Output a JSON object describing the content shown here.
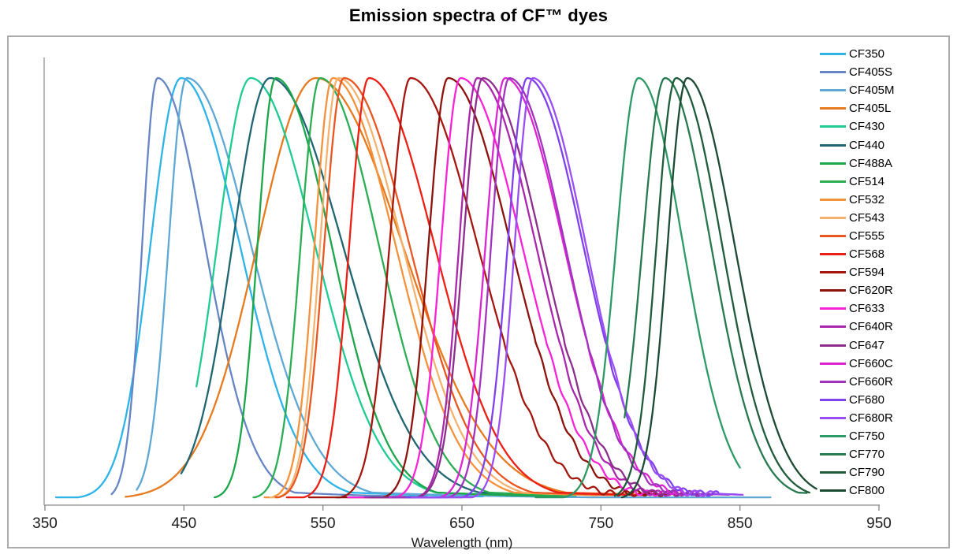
{
  "title": "Emission spectra of CF™ dyes",
  "chart_data": {
    "type": "line",
    "title": "Emission spectra of CF™ dyes",
    "xlabel": "Wavelength (nm)",
    "ylabel": "",
    "x_range_nm": [
      350,
      950
    ],
    "x_ticks": [
      "350",
      "450",
      "550",
      "650",
      "750",
      "850",
      "950"
    ],
    "y_axis": "normalized fluorescence intensity (unlabeled, all peaks equal height)",
    "grid": "off",
    "legend_position": "right",
    "series": [
      {
        "name": "CF350",
        "color": "#2EB3E8",
        "em_peak_nm": 448,
        "sigma_left": 22,
        "sigma_right": 42,
        "range_nm": [
          358,
          665
        ]
      },
      {
        "name": "CF405S",
        "color": "#6685C4",
        "em_peak_nm": 431,
        "sigma_left": 11,
        "sigma_right": 34,
        "range_nm": [
          398,
          625
        ]
      },
      {
        "name": "CF405M",
        "color": "#5FA8D5",
        "em_peak_nm": 452,
        "sigma_left": 13,
        "sigma_right": 46,
        "range_nm": [
          416,
          872
        ]
      },
      {
        "name": "CF405L",
        "color": "#E87A1E",
        "em_peak_nm": 545,
        "sigma_left": 42,
        "sigma_right": 62,
        "range_nm": [
          408,
          785
        ]
      },
      {
        "name": "CF430",
        "color": "#1FCB93",
        "em_peak_nm": 498,
        "sigma_left": 24,
        "sigma_right": 46,
        "range_nm": [
          459,
          706
        ]
      },
      {
        "name": "CF440",
        "color": "#1F6672",
        "em_peak_nm": 512,
        "sigma_left": 27,
        "sigma_right": 52,
        "range_nm": [
          448,
          726
        ]
      },
      {
        "name": "CF488A",
        "color": "#1BA64A",
        "em_peak_nm": 516,
        "sigma_left": 13,
        "sigma_right": 40,
        "range_nm": [
          472,
          722
        ]
      },
      {
        "name": "CF514",
        "color": "#2BAD53",
        "em_peak_nm": 548,
        "sigma_left": 14,
        "sigma_right": 42,
        "range_nm": [
          500,
          732
        ]
      },
      {
        "name": "CF532",
        "color": "#F5913B",
        "em_peak_nm": 557,
        "sigma_left": 13,
        "sigma_right": 45,
        "range_nm": [
          508,
          748
        ]
      },
      {
        "name": "CF543",
        "color": "#F4B26E",
        "em_peak_nm": 561,
        "sigma_left": 13,
        "sigma_right": 46,
        "range_nm": [
          512,
          756
        ]
      },
      {
        "name": "CF555",
        "color": "#E9561F",
        "em_peak_nm": 565,
        "sigma_left": 14,
        "sigma_right": 47,
        "range_nm": [
          516,
          760
        ]
      },
      {
        "name": "CF568",
        "color": "#ED1F14",
        "em_peak_nm": 583,
        "sigma_left": 14,
        "sigma_right": 47,
        "range_nm": [
          524,
          780
        ]
      },
      {
        "name": "CF594",
        "color": "#A5170E",
        "em_peak_nm": 613,
        "sigma_left": 15,
        "sigma_right": 48,
        "range_nm": [
          540,
          800
        ],
        "tail_noise": true
      },
      {
        "name": "CF620R",
        "color": "#8C120B",
        "em_peak_nm": 640,
        "sigma_left": 14,
        "sigma_right": 45,
        "range_nm": [
          560,
          808
        ],
        "tail_noise": true
      },
      {
        "name": "CF633",
        "color": "#F823D7",
        "em_peak_nm": 649,
        "sigma_left": 14,
        "sigma_right": 44,
        "range_nm": [
          568,
          818
        ],
        "tail_noise": true
      },
      {
        "name": "CF640R",
        "color": "#A827AC",
        "em_peak_nm": 661,
        "sigma_left": 13,
        "sigma_right": 42,
        "range_nm": [
          580,
          826
        ],
        "tail_noise": true
      },
      {
        "name": "CF647",
        "color": "#8D2D8D",
        "em_peak_nm": 665,
        "sigma_left": 14,
        "sigma_right": 42,
        "range_nm": [
          584,
          830
        ],
        "tail_noise": true
      },
      {
        "name": "CF660C",
        "color": "#DC25D2",
        "em_peak_nm": 681,
        "sigma_left": 14,
        "sigma_right": 42,
        "range_nm": [
          598,
          838
        ],
        "tail_noise": true
      },
      {
        "name": "CF660R",
        "color": "#A233BE",
        "em_peak_nm": 684,
        "sigma_left": 13,
        "sigma_right": 40,
        "range_nm": [
          600,
          842
        ],
        "tail_noise": true
      },
      {
        "name": "CF680",
        "color": "#7F41EB",
        "em_peak_nm": 697,
        "sigma_left": 14,
        "sigma_right": 40,
        "range_nm": [
          610,
          848
        ],
        "tail_noise": true
      },
      {
        "name": "CF680R",
        "color": "#9A4DF2",
        "em_peak_nm": 701,
        "sigma_left": 13,
        "sigma_right": 38,
        "range_nm": [
          614,
          852
        ],
        "tail_noise": true
      },
      {
        "name": "CF750",
        "color": "#2C9A64",
        "em_peak_nm": 777,
        "sigma_left": 16,
        "sigma_right": 32,
        "range_nm": [
          703,
          850
        ]
      },
      {
        "name": "CF770",
        "color": "#27794E",
        "em_peak_nm": 796,
        "sigma_left": 16,
        "sigma_right": 33,
        "range_nm": [
          767,
          898
        ]
      },
      {
        "name": "CF790",
        "color": "#1E5C3C",
        "em_peak_nm": 804,
        "sigma_left": 14,
        "sigma_right": 33,
        "range_nm": [
          760,
          900
        ]
      },
      {
        "name": "CF800",
        "color": "#1B4B33",
        "em_peak_nm": 812,
        "sigma_left": 14,
        "sigma_right": 34,
        "range_nm": [
          765,
          905
        ]
      }
    ],
    "axis_color": "#9b9b9b",
    "tick_color": "#8c8c8c",
    "text_color": "#1a1a1a"
  }
}
